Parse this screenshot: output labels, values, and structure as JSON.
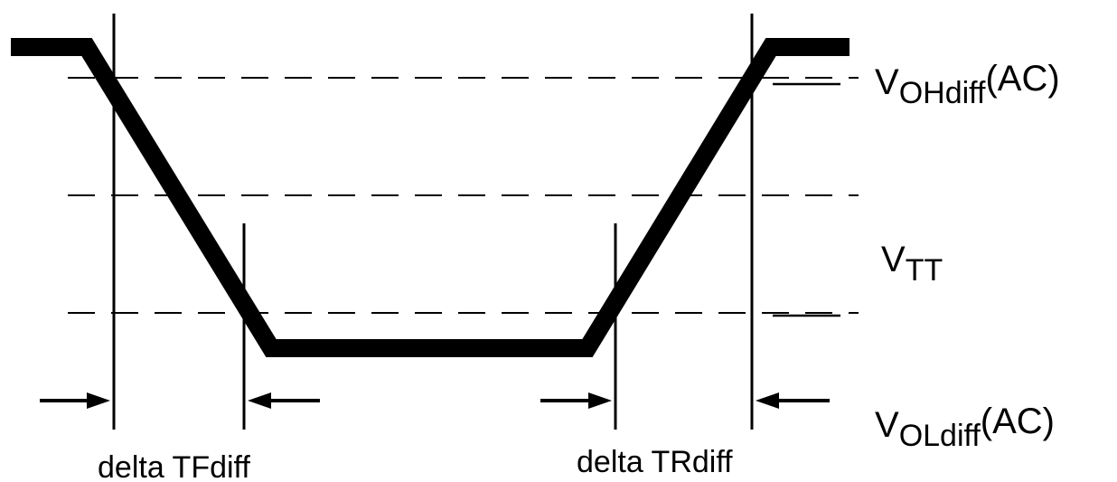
{
  "labels": {
    "voh_main": "V",
    "voh_sub": "OHdiff",
    "voh_suffix": "(AC)",
    "vtt_main": "V",
    "vtt_sub": "TT",
    "vol_main": "V",
    "vol_sub": "OLdiff",
    "vol_suffix": "(AC)",
    "fall_label": "delta TFdiff",
    "rise_label": "delta TRdiff"
  }
}
